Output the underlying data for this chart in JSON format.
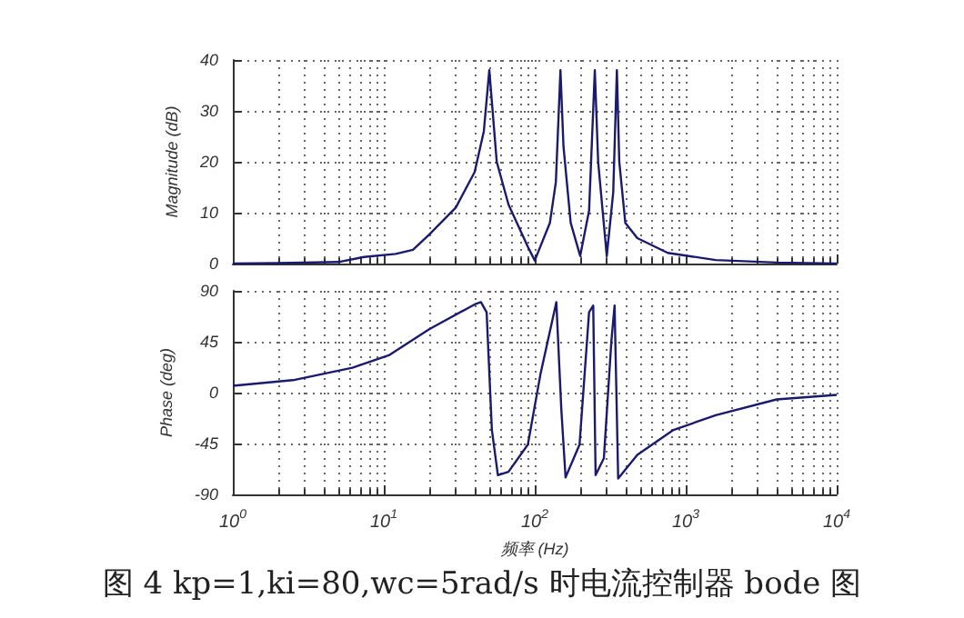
{
  "chart_data": [
    {
      "type": "line",
      "ylabel": "Magnitude (dB)",
      "xlim": [
        1,
        10000
      ],
      "xticks": [
        {
          "value": 1,
          "label": null
        },
        {
          "value": 10,
          "label": null
        },
        {
          "value": 100,
          "label": null
        },
        {
          "value": 1000,
          "label": null
        },
        {
          "value": 10000,
          "label": null
        }
      ],
      "ylim": [
        0,
        40
      ],
      "yticks": [
        0,
        10,
        20,
        30,
        40
      ],
      "log": "x",
      "grid": true,
      "tick_labels": "y",
      "series": [
        {
          "color": "#1a1a6e",
          "x": [
            1,
            2,
            5,
            7.4,
            12,
            15.6,
            20,
            30,
            40,
            46,
            50,
            56,
            67,
            90,
            100,
            126,
            138,
            148,
            155,
            173,
            200,
            229,
            250,
            263,
            300,
            331,
            350,
            363,
            398,
            478,
            760,
            1580,
            4000,
            10000
          ],
          "values": [
            0,
            0.1,
            0.3,
            1.3,
            1.9,
            2.7,
            5.7,
            11,
            18,
            26,
            38,
            20,
            11.6,
            3.3,
            0.6,
            8,
            16,
            38,
            23,
            8,
            1.5,
            10.4,
            38,
            20,
            1.5,
            14,
            38,
            20,
            8,
            5,
            2.1,
            0.7,
            0.2,
            0
          ]
        }
      ]
    },
    {
      "type": "line",
      "xlabel": "频率 (Hz)",
      "ylabel": "Phase (deg)",
      "xlim": [
        1,
        10000
      ],
      "xticks": [
        {
          "value": 1,
          "label": "10$^{0}$"
        },
        {
          "value": 10,
          "label": "10$^{1}$"
        },
        {
          "value": 100,
          "label": "10$^{2}$"
        },
        {
          "value": 1000,
          "label": "10$^{3}$"
        },
        {
          "value": 10000,
          "label": "10$^{4}$"
        }
      ],
      "ylim": [
        -90,
        90
      ],
      "yticks": [
        -90,
        -45,
        0,
        45,
        90
      ],
      "log": "x",
      "grid": true,
      "annotations": [
        "图 4 kp=1,ki=80,wc=5rad/s 时电流控制器 bode 图"
      ],
      "series": [
        {
          "color": "#1a1a6e",
          "x": [
            1,
            2.5,
            6.2,
            10.8,
            20,
            40,
            44,
            48,
            52,
            57,
            67,
            90,
            109,
            139,
            150,
            160,
            198,
            229,
            244,
            253,
            287,
            322,
            338,
            357,
            478,
            830,
            1580,
            4000,
            10000
          ],
          "values": [
            6,
            11,
            22,
            33,
            56,
            78,
            80,
            71,
            -33,
            -73,
            -70,
            -46,
            16,
            80,
            -15,
            -75,
            -46,
            71,
            77,
            -73,
            -58,
            46,
            77,
            -76,
            -55,
            -33,
            -20,
            -6,
            -2
          ]
        }
      ]
    }
  ]
}
